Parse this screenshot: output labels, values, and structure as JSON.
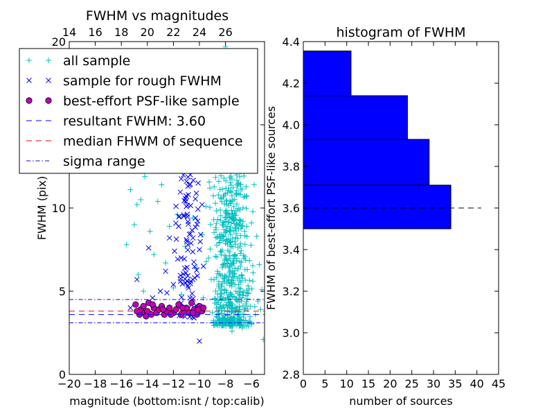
{
  "chart_data": [
    {
      "type": "scatter",
      "title": "FWHM vs magnitudes",
      "xlabel": "magnitude (bottom:isnt / top:calib)",
      "ylabel": "FWHM (pix)",
      "xlim": [
        -20,
        -5
      ],
      "ylim": [
        0,
        20
      ],
      "x_ticks": [
        "−20",
        "−18",
        "−16",
        "−14",
        "−12",
        "−10",
        "−8",
        "−6"
      ],
      "x_tick_values": [
        -20,
        -18,
        -16,
        -14,
        -12,
        -10,
        -8,
        -6
      ],
      "y_ticks": [
        "0",
        "5",
        "10",
        "15",
        "20"
      ],
      "y_tick_values": [
        0,
        5,
        10,
        15,
        20
      ],
      "top_ticks": [
        "14",
        "16",
        "18",
        "20",
        "22",
        "24",
        "26"
      ],
      "top_tick_values": [
        14,
        16,
        18,
        20,
        22,
        24,
        26
      ],
      "top_axis_offset": 34,
      "grid": false,
      "legend_position": "top-left",
      "series": [
        {
          "name": "all sample",
          "marker": "plus",
          "color": "#00bfbf",
          "points": [
            [
              -15.6,
              7.8
            ],
            [
              -15.3,
              11.1
            ],
            [
              -15.0,
              9.0
            ],
            [
              -14.8,
              10.2
            ],
            [
              -14.5,
              10.5
            ],
            [
              -14.2,
              11.9
            ],
            [
              -14.7,
              6.0
            ],
            [
              -14.3,
              5.0
            ],
            [
              -13.8,
              8.6
            ],
            [
              -13.5,
              7.2
            ],
            [
              -13.2,
              10.4
            ],
            [
              -12.9,
              11.4
            ],
            [
              -12.6,
              6.7
            ],
            [
              -12.3,
              8.9
            ],
            [
              -12.0,
              5.2
            ],
            [
              -11.7,
              9.6
            ],
            [
              -11.4,
              4.8
            ],
            [
              -11.1,
              7.7
            ],
            [
              -10.8,
              5.6
            ],
            [
              -10.5,
              9.4
            ],
            [
              -10.2,
              6.4
            ],
            [
              -9.9,
              14.9
            ],
            [
              -9.6,
              12.8
            ],
            [
              -9.4,
              16.6
            ],
            [
              -9.2,
              11.2
            ],
            [
              -9.0,
              13.3
            ],
            [
              -8.8,
              18.2
            ],
            [
              -8.6,
              15.6
            ],
            [
              -8.4,
              17.4
            ],
            [
              -8.2,
              14.0
            ],
            [
              -8.0,
              19.7
            ],
            [
              -7.8,
              16.5
            ],
            [
              -7.6,
              18.9
            ],
            [
              -7.4,
              13.6
            ],
            [
              -7.2,
              15.3
            ],
            [
              -7.0,
              17.2
            ],
            [
              -6.8,
              12.2
            ],
            [
              -6.6,
              14.8
            ],
            [
              -6.4,
              10.7
            ],
            [
              -6.2,
              12.6
            ],
            [
              -6.0,
              9.1
            ],
            [
              -5.8,
              11.4
            ],
            [
              -5.6,
              8.3
            ],
            [
              -5.4,
              6.6
            ],
            [
              -5.2,
              5.1
            ],
            [
              -5.1,
              2.1
            ],
            [
              -5.3,
              3.9
            ],
            [
              -5.5,
              4.4
            ],
            [
              -5.7,
              3.6
            ],
            [
              -5.9,
              5.6
            ],
            [
              -6.1,
              4.1
            ],
            [
              -6.3,
              3.1
            ],
            [
              -6.5,
              6.3
            ],
            [
              -6.7,
              2.8
            ],
            [
              -6.9,
              4.8
            ],
            [
              -7.1,
              3.5
            ],
            [
              -7.3,
              5.9
            ],
            [
              -7.5,
              2.6
            ],
            [
              -7.7,
              4.3
            ],
            [
              -7.9,
              6.9
            ],
            [
              -8.1,
              3.3
            ],
            [
              -8.3,
              5.3
            ],
            [
              -8.5,
              7.9
            ],
            [
              -8.7,
              4.0
            ],
            [
              -8.9,
              9.3
            ],
            [
              -9.1,
              5.7
            ],
            [
              -9.3,
              7.0
            ],
            [
              -9.5,
              10.1
            ],
            [
              -9.7,
              4.6
            ],
            [
              -9.8,
              8.4
            ]
          ],
          "cloud": {
            "x_range": [
              -9.6,
              -5.6
            ],
            "y_range": [
              2.9,
              12
            ],
            "count": 550
          }
        },
        {
          "name": "sample for rough FWHM",
          "marker": "x",
          "color": "#0000ff",
          "points": [
            [
              -15.3,
              4.0
            ],
            [
              -14.8,
              5.7
            ],
            [
              -14.3,
              3.9
            ],
            [
              -13.9,
              7.6
            ],
            [
              -13.6,
              4.6
            ],
            [
              -13.0,
              5.0
            ],
            [
              -12.6,
              6.2
            ],
            [
              -12.3,
              8.2
            ],
            [
              -12.0,
              5.4
            ],
            [
              -11.8,
              10.1
            ],
            [
              -11.6,
              8.9
            ],
            [
              -11.4,
              7.0
            ],
            [
              -11.2,
              9.5
            ],
            [
              -11.0,
              10.7
            ],
            [
              -10.9,
              14.7
            ],
            [
              -10.7,
              12.0
            ],
            [
              -10.5,
              13.7
            ],
            [
              -10.3,
              9.4
            ],
            [
              -10.1,
              11.5
            ],
            [
              -10.0,
              7.5
            ],
            [
              -9.9,
              8.4
            ],
            [
              -9.8,
              10.2
            ],
            [
              -9.7,
              6.5
            ],
            [
              -10.0,
              2.0
            ],
            [
              -10.5,
              5.7
            ],
            [
              -11.5,
              4.1
            ],
            [
              -12.5,
              4.9
            ],
            [
              -10.2,
              14.2
            ],
            [
              -10.6,
              13.0
            ]
          ],
          "cloud": {
            "x_range": [
              -12.2,
              -9.6
            ],
            "y_range": [
              3.4,
              15
            ],
            "count": 110
          }
        },
        {
          "name": "best-effort PSF-like sample",
          "marker": "circle",
          "color": "#bf00bf",
          "points": [
            [
              -14.9,
              4.2
            ],
            [
              -14.6,
              3.6
            ],
            [
              -14.5,
              3.9
            ],
            [
              -14.3,
              4.1
            ],
            [
              -14.2,
              3.7
            ],
            [
              -14.0,
              3.8
            ],
            [
              -13.9,
              4.3
            ],
            [
              -13.7,
              3.6
            ],
            [
              -13.5,
              4.0
            ],
            [
              -13.3,
              3.7
            ],
            [
              -13.1,
              3.9
            ],
            [
              -12.9,
              4.1
            ],
            [
              -12.7,
              3.6
            ],
            [
              -12.5,
              3.8
            ],
            [
              -12.3,
              4.0
            ],
            [
              -12.0,
              3.7
            ],
            [
              -11.8,
              3.9
            ],
            [
              -11.6,
              4.2
            ],
            [
              -11.4,
              3.6
            ],
            [
              -11.2,
              3.8
            ],
            [
              -11.0,
              4.0
            ],
            [
              -10.8,
              3.7
            ],
            [
              -10.6,
              4.3
            ],
            [
              -10.4,
              3.9
            ],
            [
              -10.2,
              3.6
            ],
            [
              -10.0,
              4.1
            ],
            [
              -9.8,
              3.8
            ],
            [
              -9.7,
              4.0
            ],
            [
              -14.8,
              3.8
            ],
            [
              -14.1,
              3.5
            ],
            [
              -13.6,
              4.2
            ],
            [
              -12.8,
              3.9
            ],
            [
              -12.2,
              3.6
            ],
            [
              -11.3,
              4.0
            ],
            [
              -10.5,
              3.7
            ],
            [
              -10.1,
              3.9
            ]
          ]
        }
      ],
      "lines": [
        {
          "name": "resultant FWHM: 3.60",
          "style": "dashed",
          "color": "#0000ff",
          "y": 3.6
        },
        {
          "name": "median FHWM of sequence",
          "style": "dashed",
          "color": "#ff0000",
          "y": 3.8
        },
        {
          "name": "sigma range",
          "style": "dashdot",
          "color": "#0000ff",
          "y": [
            4.5,
            3.1
          ]
        }
      ]
    },
    {
      "type": "bar",
      "orientation": "horizontal",
      "title": "histogram of FWHM",
      "xlabel": "number of sources",
      "ylabel": "FWHM of best-effort PSF-like sources",
      "xlim": [
        0,
        45
      ],
      "ylim": [
        2.8,
        4.4
      ],
      "x_ticks": [
        "0",
        "5",
        "10",
        "15",
        "20",
        "25",
        "30",
        "35",
        "40",
        "45"
      ],
      "x_tick_values": [
        0,
        5,
        10,
        15,
        20,
        25,
        30,
        35,
        40,
        45
      ],
      "y_ticks": [
        "2.8",
        "3.0",
        "3.2",
        "3.4",
        "3.6",
        "3.8",
        "4.0",
        "4.2",
        "4.4"
      ],
      "y_tick_values": [
        2.8,
        3.0,
        3.2,
        3.4,
        3.6,
        3.8,
        4.0,
        4.2,
        4.4
      ],
      "bar_color": "#0000ff",
      "bins": [
        {
          "y0": 3.5,
          "y1": 3.71,
          "count": 34
        },
        {
          "y0": 3.71,
          "y1": 3.93,
          "count": 29
        },
        {
          "y0": 3.93,
          "y1": 4.14,
          "count": 24
        },
        {
          "y0": 4.14,
          "y1": 4.355,
          "count": 11
        }
      ],
      "reference_line": {
        "y": 3.6,
        "x_range": [
          0,
          41
        ],
        "style": "dashed",
        "color": "#000000"
      }
    }
  ]
}
